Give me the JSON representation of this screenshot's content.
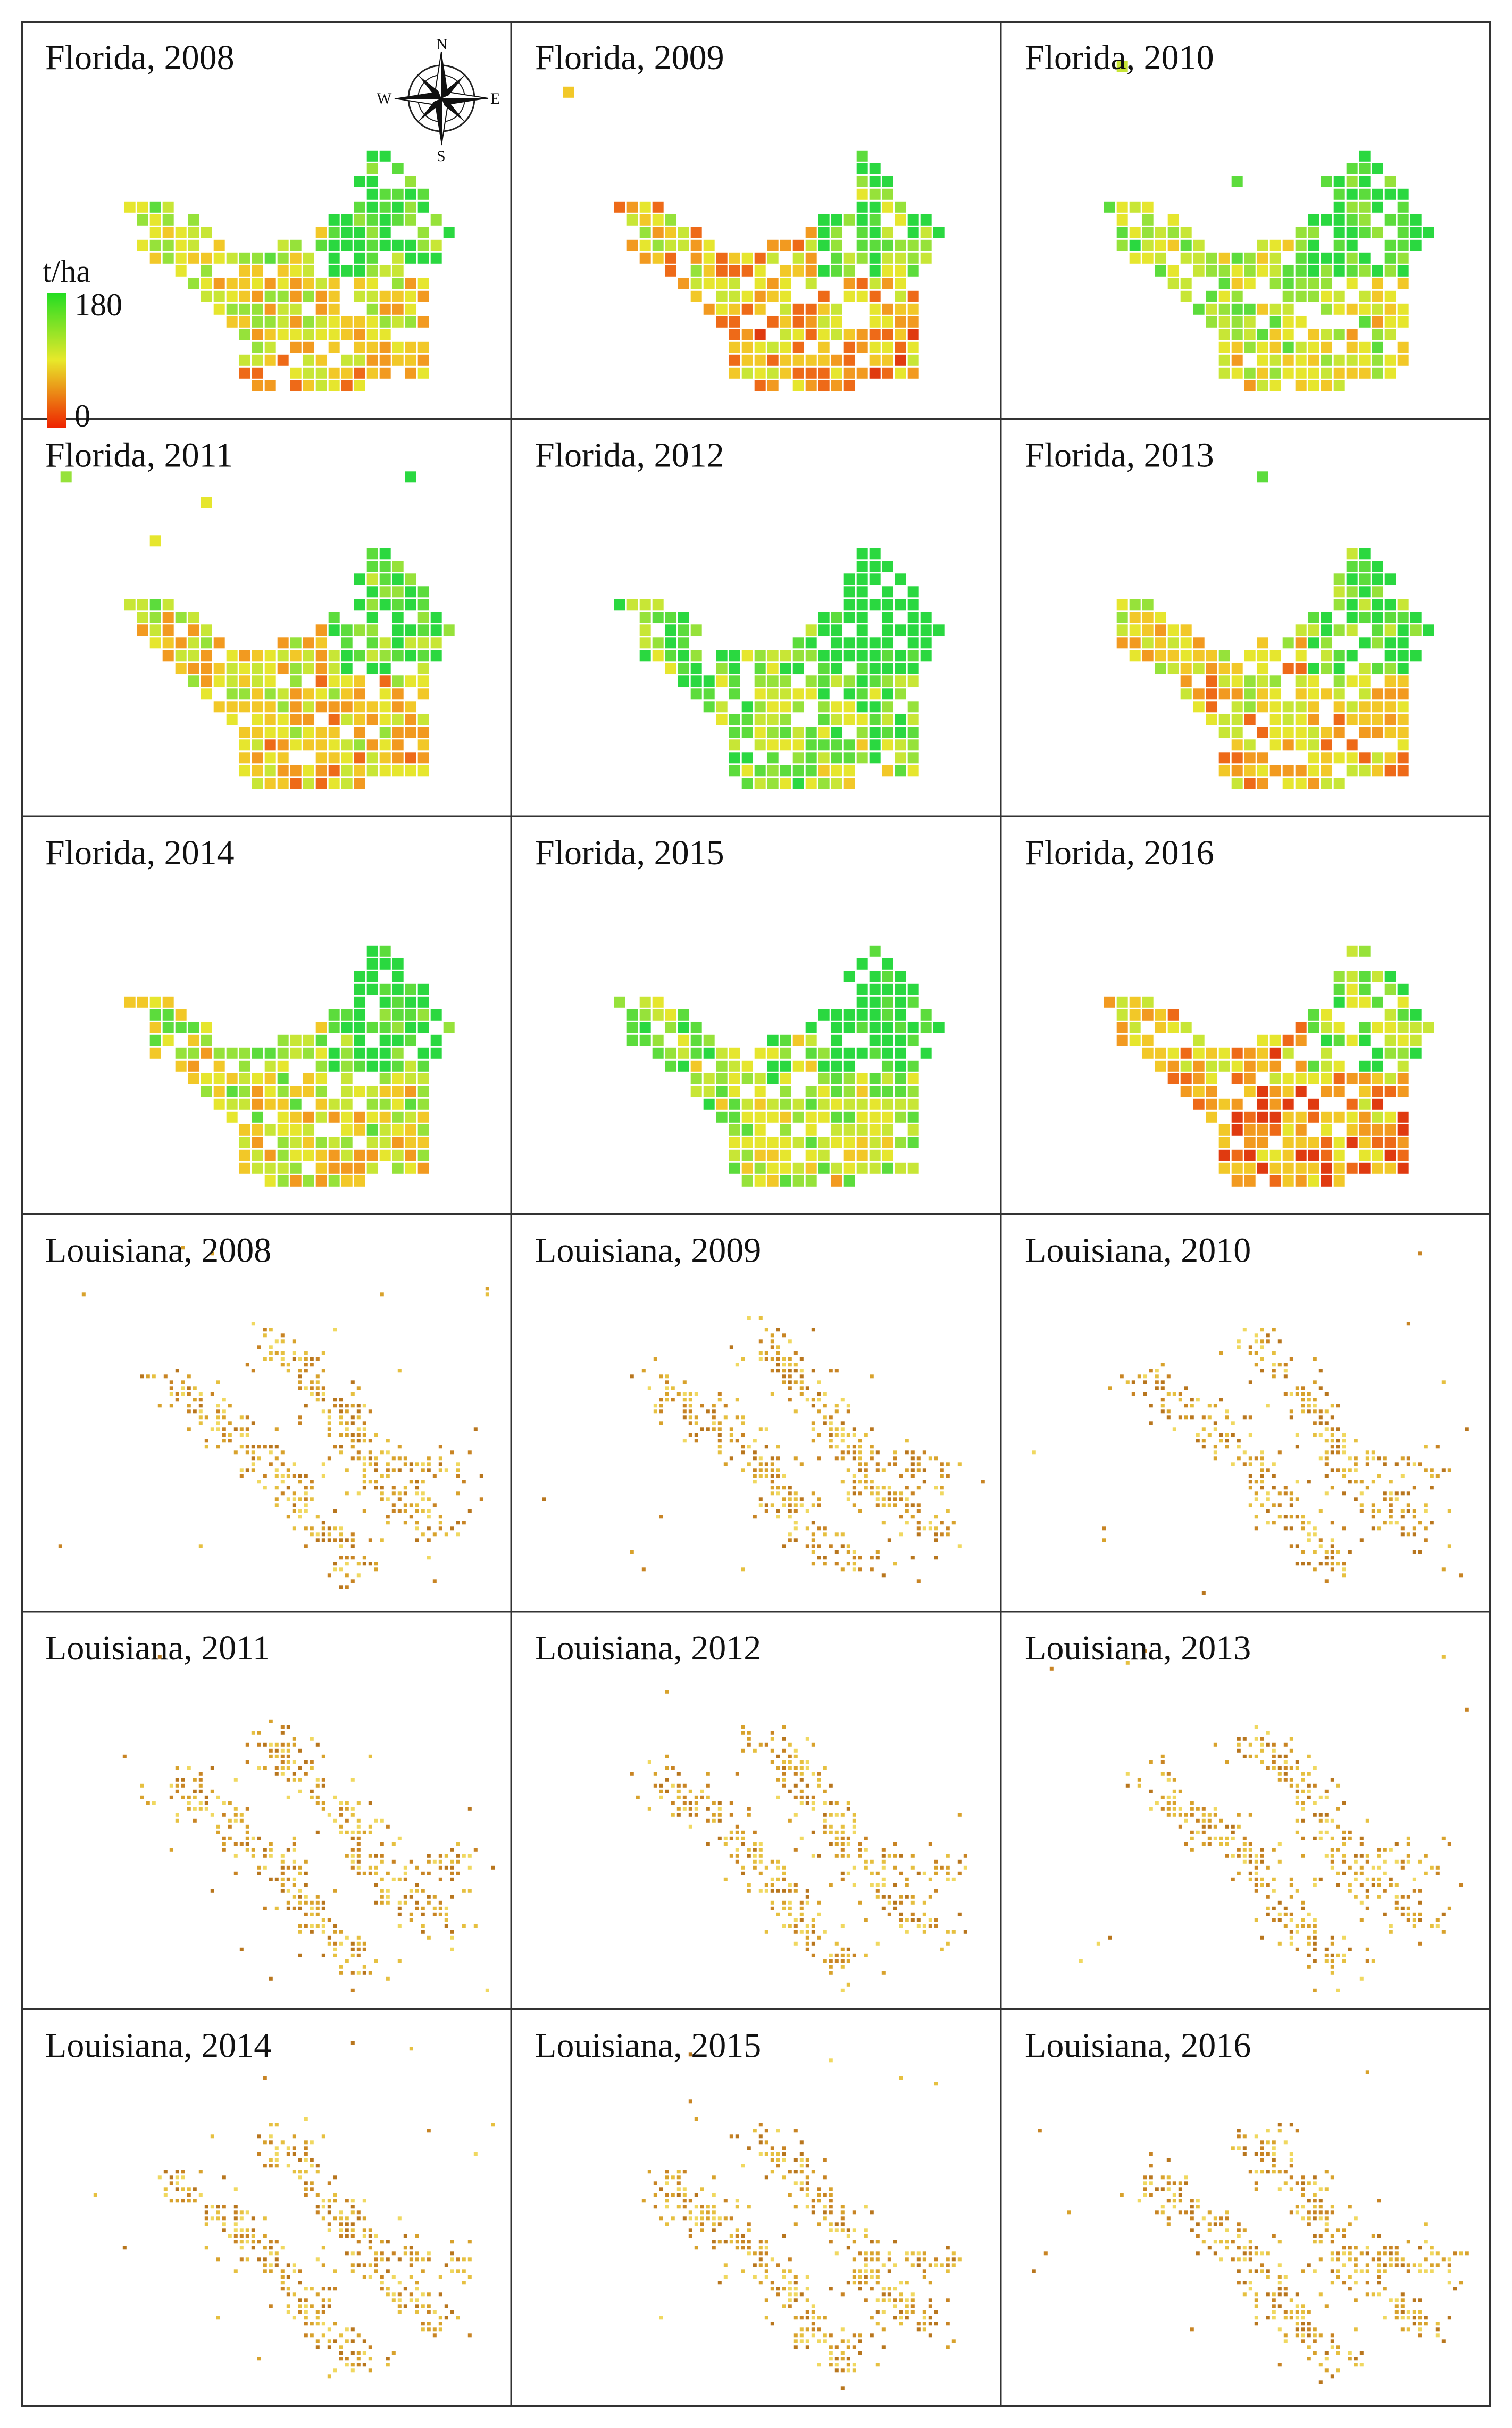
{
  "figure": {
    "panels": [
      {
        "title": "Florida, 2008",
        "region": "florida",
        "variant": 0
      },
      {
        "title": "Florida, 2009",
        "region": "florida",
        "variant": 1
      },
      {
        "title": "Florida, 2010",
        "region": "florida",
        "variant": 2
      },
      {
        "title": "Florida, 2011",
        "region": "florida",
        "variant": 3
      },
      {
        "title": "Florida, 2012",
        "region": "florida",
        "variant": 4
      },
      {
        "title": "Florida, 2013",
        "region": "florida",
        "variant": 5
      },
      {
        "title": "Florida, 2014",
        "region": "florida",
        "variant": 6
      },
      {
        "title": "Florida, 2015",
        "region": "florida",
        "variant": 7
      },
      {
        "title": "Florida, 2016",
        "region": "florida",
        "variant": 8
      },
      {
        "title": "Louisiana, 2008",
        "region": "louisiana",
        "variant": 0
      },
      {
        "title": "Louisiana, 2009",
        "region": "louisiana",
        "variant": 1
      },
      {
        "title": "Louisiana, 2010",
        "region": "louisiana",
        "variant": 2
      },
      {
        "title": "Louisiana, 2011",
        "region": "louisiana",
        "variant": 3
      },
      {
        "title": "Louisiana, 2012",
        "region": "louisiana",
        "variant": 4
      },
      {
        "title": "Louisiana, 2013",
        "region": "louisiana",
        "variant": 5
      },
      {
        "title": "Louisiana, 2014",
        "region": "louisiana",
        "variant": 6
      },
      {
        "title": "Louisiana, 2015",
        "region": "louisiana",
        "variant": 7
      },
      {
        "title": "Louisiana, 2016",
        "region": "louisiana",
        "variant": 8
      }
    ],
    "legend": {
      "unit": "t/ha",
      "max_label": "180",
      "min_label": "0",
      "color_high": "#22dd22",
      "color_mid": "#e8e82a",
      "color_low": "#ee2200"
    },
    "compass": {
      "n": "N",
      "s": "S",
      "e": "E",
      "w": "W",
      "icon": "compass-rose-icon"
    },
    "colors": {
      "border": "#333333",
      "florida_palette": [
        "#e03a10",
        "#ee6a18",
        "#f29a20",
        "#f2c828",
        "#e6e62e",
        "#c8e636",
        "#96e23a",
        "#5cdc3c",
        "#2ad840"
      ],
      "louisiana_palette": [
        "#e6c040",
        "#d8a22c",
        "#c88424",
        "#f0d860",
        "#b8761e"
      ]
    }
  }
}
